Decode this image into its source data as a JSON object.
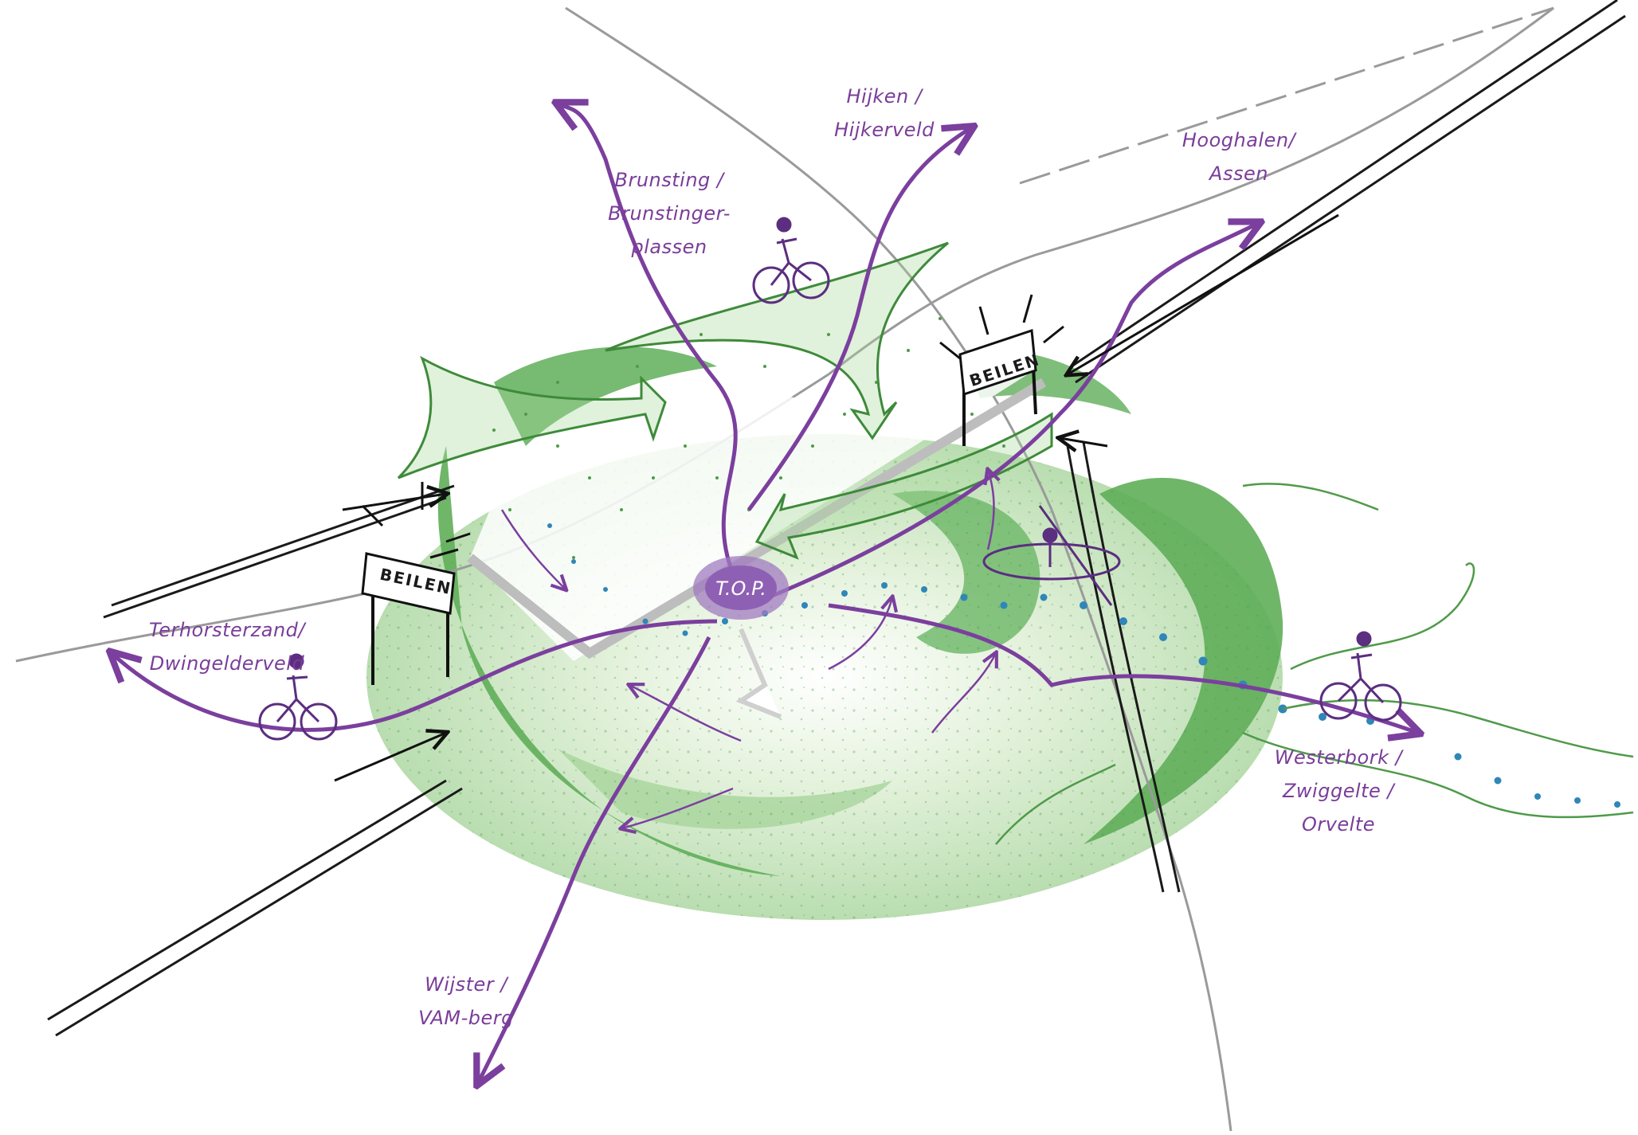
{
  "places": {
    "hijken": [
      "Hijken /",
      "Hijkerveld"
    ],
    "brunsting": [
      "Brunsting /",
      "Brunstinger-",
      "plassen"
    ],
    "hooghalen": [
      "Hooghalen/",
      "Assen"
    ],
    "terhorst": [
      "Terhorsterzand/",
      "Dwingelderveld"
    ],
    "westerbork": [
      "Westerbork /",
      "Zwiggelte /",
      "Orvelte"
    ],
    "wijster": [
      "Wijster /",
      "VAM-berg"
    ]
  },
  "signs": {
    "west": "BEILEN",
    "east": "BEILEN"
  },
  "center_label": "T.O.P.",
  "colors": {
    "route_purple": "#7b3f9e",
    "green_dark": "#3e8a3a",
    "green_mid": "#7cc27a",
    "green_light": "#cfe8c4",
    "water_blue": "#2f86b8",
    "road_gray": "#9a9a9a"
  },
  "icons": [
    "cyclist-icon",
    "cyclist-icon",
    "cyclist-icon",
    "canoeist-icon",
    "town-sign-icon",
    "town-sign-icon"
  ]
}
